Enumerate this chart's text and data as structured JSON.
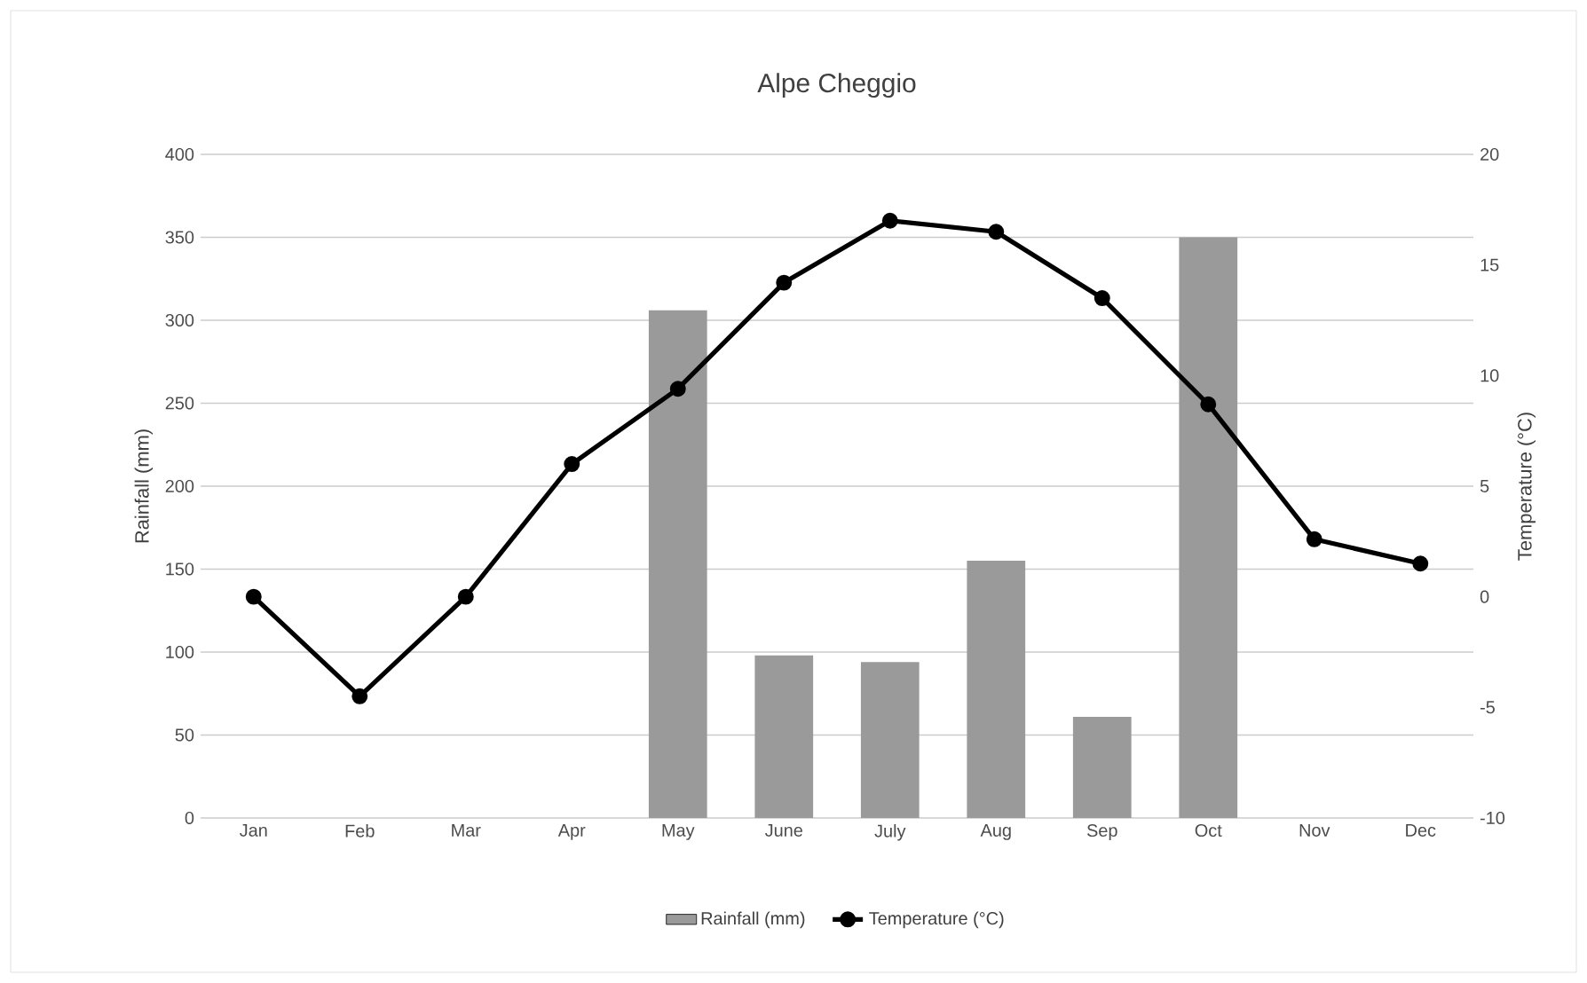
{
  "chart_data": {
    "type": "bar",
    "title": "Alpe Cheggio",
    "ylabel": "Rainfall (mm)",
    "y2label": "Temperature (°C)",
    "categories": [
      "Jan",
      "Feb",
      "Mar",
      "Apr",
      "May",
      "June",
      "July",
      "Aug",
      "Sep",
      "Oct",
      "Nov",
      "Dec"
    ],
    "series": [
      {
        "name": "Rainfall (mm)",
        "color": "#9a9a9a",
        "values": [
          0,
          0,
          0,
          0,
          306,
          98,
          94,
          155,
          61,
          350,
          0,
          0
        ]
      },
      {
        "name": "Temperature (°C)",
        "type": "line",
        "axis": "y2",
        "color": "#000000",
        "values": [
          0,
          -4.5,
          0,
          6.0,
          9.4,
          14.2,
          17.0,
          16.5,
          13.5,
          8.7,
          2.6,
          1.5
        ]
      }
    ],
    "ylim": [
      0,
      400
    ],
    "yticks": [
      0,
      50,
      100,
      150,
      200,
      250,
      300,
      350,
      400
    ],
    "y2lim": [
      -10,
      20
    ],
    "y2ticks": [
      -10,
      -5,
      0,
      5,
      10,
      15,
      20
    ],
    "grid": "y",
    "legend": "bottom",
    "marker": "circle",
    "line_style": "solid"
  }
}
